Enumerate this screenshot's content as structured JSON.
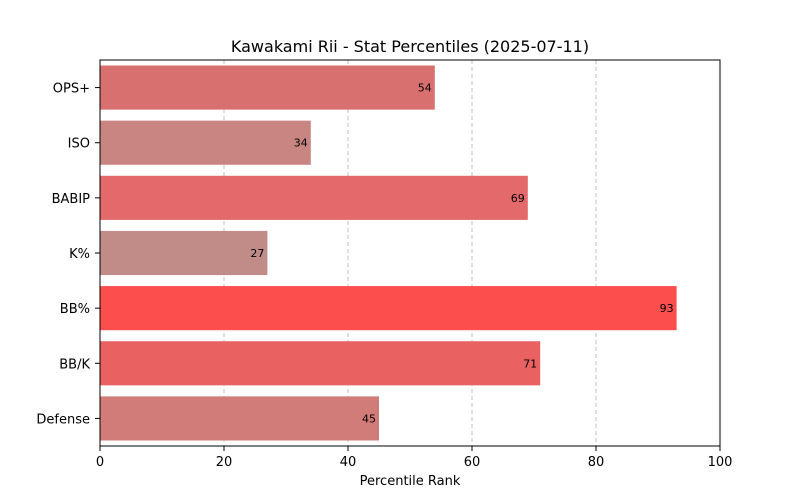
{
  "chart_data": {
    "type": "bar",
    "orientation": "horizontal",
    "title": "Kawakami Rii - Stat Percentiles (2025-07-11)",
    "xlabel": "Percentile Rank",
    "ylabel": "",
    "xlim": [
      0,
      100
    ],
    "xticks": [
      0,
      20,
      40,
      60,
      80,
      100
    ],
    "grid": "x-axis dashed",
    "categories": [
      "OPS+",
      "ISO",
      "BABIP",
      "K%",
      "BB%",
      "BB/K",
      "Defense"
    ],
    "values": [
      54,
      34,
      69,
      27,
      93,
      71,
      45
    ],
    "colors": [
      "#d97070",
      "#c98581",
      "#e4696a",
      "#c18c88",
      "#fd4e4e",
      "#ea6161",
      "#d27c79"
    ]
  }
}
